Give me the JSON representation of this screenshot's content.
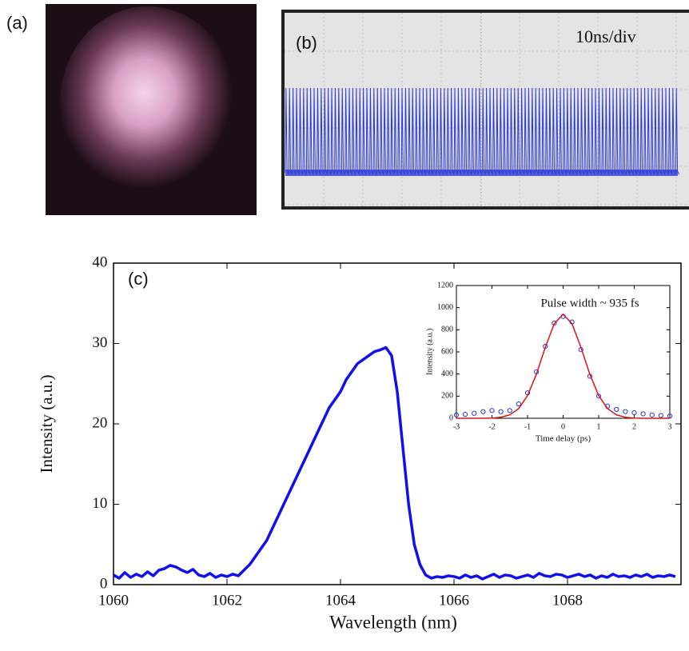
{
  "panels": [
    {
      "label": "(a)"
    },
    {
      "label": "(b)",
      "annotation": "10ns/div"
    }
  ],
  "chart_data": [
    {
      "type": "line",
      "label": "(c)",
      "xlabel": "Wavelength (nm)",
      "ylabel": "Intensity (a.u.)",
      "xlim": [
        1060,
        1070
      ],
      "xticks": [
        1060,
        1062,
        1064,
        1066,
        1068
      ],
      "ylim": [
        0,
        40
      ],
      "yticks": [
        0,
        10,
        20,
        30,
        40
      ],
      "color": "#1010ee",
      "x": [
        1060.0,
        1060.1,
        1060.2,
        1060.3,
        1060.4,
        1060.5,
        1060.6,
        1060.7,
        1060.8,
        1060.9,
        1061.0,
        1061.1,
        1061.2,
        1061.3,
        1061.4,
        1061.5,
        1061.6,
        1061.7,
        1061.8,
        1061.9,
        1062.0,
        1062.1,
        1062.2,
        1062.3,
        1062.4,
        1062.5,
        1062.6,
        1062.7,
        1062.8,
        1062.9,
        1063.0,
        1063.1,
        1063.2,
        1063.3,
        1063.4,
        1063.5,
        1063.6,
        1063.7,
        1063.8,
        1063.9,
        1064.0,
        1064.1,
        1064.2,
        1064.3,
        1064.4,
        1064.5,
        1064.6,
        1064.7,
        1064.8,
        1064.9,
        1065.0,
        1065.1,
        1065.2,
        1065.3,
        1065.4,
        1065.5,
        1065.6,
        1065.7,
        1065.8,
        1065.9,
        1066.0,
        1066.1,
        1066.2,
        1066.3,
        1066.4,
        1066.5,
        1066.6,
        1066.7,
        1066.8,
        1066.9,
        1067.0,
        1067.1,
        1067.2,
        1067.3,
        1067.4,
        1067.5,
        1067.6,
        1067.7,
        1067.8,
        1067.9,
        1068.0,
        1068.1,
        1068.2,
        1068.3,
        1068.4,
        1068.5,
        1068.6,
        1068.7,
        1068.8,
        1068.9,
        1069.0,
        1069.1,
        1069.2,
        1069.3,
        1069.4,
        1069.5,
        1069.6,
        1069.7,
        1069.8,
        1069.9
      ],
      "values": [
        1.2,
        0.8,
        1.5,
        0.9,
        1.3,
        1.0,
        1.6,
        1.1,
        1.8,
        2.0,
        2.4,
        2.2,
        1.8,
        1.5,
        1.9,
        1.2,
        1.0,
        1.4,
        0.9,
        1.2,
        1.0,
        1.3,
        1.1,
        1.8,
        2.5,
        3.5,
        4.5,
        5.5,
        7.0,
        8.5,
        10,
        11.5,
        13,
        14.5,
        16,
        17.5,
        19,
        20.5,
        22,
        23,
        24,
        25.5,
        26.5,
        27.5,
        28,
        28.5,
        29,
        29.2,
        29.5,
        28.5,
        24,
        17,
        10,
        5,
        2.5,
        1.2,
        0.8,
        1.0,
        0.9,
        1.1,
        1.0,
        0.8,
        1.2,
        0.9,
        1.1,
        0.7,
        1.0,
        1.3,
        0.9,
        1.2,
        1.1,
        0.8,
        1.0,
        1.2,
        0.9,
        1.4,
        1.1,
        1.0,
        1.3,
        1.2,
        0.9,
        1.1,
        1.3,
        1.0,
        1.2,
        0.8,
        1.1,
        0.9,
        1.3,
        1.0,
        1.1,
        0.9,
        1.2,
        1.0,
        1.3,
        0.9,
        1.1,
        1.0,
        1.2,
        1.0
      ]
    },
    {
      "type": "line",
      "annotation": "Pulse width ~ 935 fs",
      "xlabel": "Time delay (ps)",
      "ylabel": "Intensity (a.u.)",
      "xlim": [
        -3,
        3
      ],
      "xticks": [
        -3,
        -2,
        -1,
        0,
        1,
        2,
        3
      ],
      "ylim": [
        0,
        1200
      ],
      "yticks": [
        0,
        200,
        400,
        600,
        800,
        1000,
        1200
      ],
      "x": [
        -3,
        -2.75,
        -2.5,
        -2.25,
        -2,
        -1.75,
        -1.5,
        -1.25,
        -1,
        -0.75,
        -0.5,
        -0.25,
        0,
        0.25,
        0.5,
        0.75,
        1,
        1.25,
        1.5,
        1.75,
        2,
        2.25,
        2.5,
        2.75,
        3
      ],
      "series": [
        {
          "color": "#2233dd",
          "marker": "circle",
          "values": [
            30,
            35,
            45,
            60,
            70,
            60,
            70,
            130,
            230,
            420,
            650,
            860,
            920,
            870,
            620,
            380,
            200,
            110,
            80,
            60,
            50,
            40,
            30,
            25,
            20
          ]
        },
        {
          "color": "#e01010",
          "marker": "none",
          "values": [
            0,
            0,
            0,
            0,
            2,
            9,
            31,
            87,
            205,
            399,
            642,
            855,
            940,
            855,
            642,
            399,
            205,
            87,
            31,
            9,
            2,
            0,
            0,
            0,
            0
          ]
        }
      ]
    }
  ]
}
